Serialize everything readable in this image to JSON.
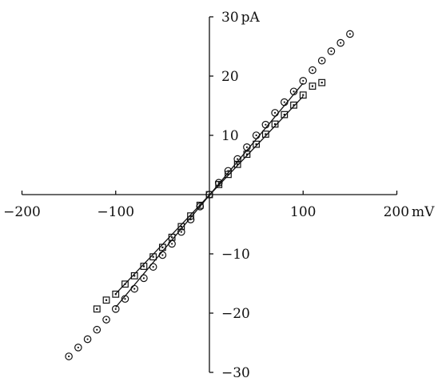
{
  "chart_data": {
    "type": "scatter",
    "title": "",
    "xlabel": "",
    "ylabel": "",
    "xlim": [
      -200,
      200
    ],
    "ylim": [
      -30,
      30
    ],
    "x_unit": "mV",
    "y_unit": "pA",
    "x_ticks": [
      {
        "value": -200,
        "label": "−200"
      },
      {
        "value": -100,
        "label": "−100"
      },
      {
        "value": 100,
        "label": "100"
      },
      {
        "value": 200,
        "label": "200"
      }
    ],
    "y_ticks": [
      {
        "value": -30,
        "label": "−30"
      },
      {
        "value": -20,
        "label": "−20"
      },
      {
        "value": -10,
        "label": "−10"
      },
      {
        "value": 10,
        "label": "10"
      },
      {
        "value": 20,
        "label": "20"
      },
      {
        "value": 30,
        "label": "30"
      }
    ],
    "grid": false,
    "series": [
      {
        "marker": "circle-dot",
        "fit_line_x": [
          -100,
          100
        ],
        "x": [
          -150,
          -140,
          -130,
          -120,
          -110,
          -100,
          -90,
          -80,
          -70,
          -60,
          -50,
          -40,
          -30,
          -20,
          -10,
          0,
          10,
          20,
          30,
          40,
          50,
          60,
          70,
          80,
          90,
          100,
          110,
          120,
          130,
          140,
          150
        ],
        "y": [
          -27.3,
          -25.8,
          -24.4,
          -22.8,
          -21.1,
          -19.3,
          -17.6,
          -15.9,
          -14.1,
          -12.2,
          -10.2,
          -8.3,
          -6.3,
          -4.2,
          -2.0,
          0.0,
          2.0,
          4.0,
          6.0,
          8.0,
          10.0,
          11.8,
          13.8,
          15.6,
          17.4,
          19.2,
          21.0,
          22.6,
          24.2,
          25.6,
          27.1
        ]
      },
      {
        "marker": "square-dot",
        "fit_line_x": [
          -100,
          100
        ],
        "x": [
          -120,
          -110,
          -100,
          -90,
          -80,
          -70,
          -60,
          -50,
          -40,
          -30,
          -20,
          -10,
          0,
          10,
          20,
          30,
          40,
          50,
          60,
          70,
          80,
          90,
          100,
          110,
          120
        ],
        "y": [
          -19.3,
          -17.8,
          -16.8,
          -15.1,
          -13.7,
          -12.1,
          -10.5,
          -8.9,
          -7.2,
          -5.4,
          -3.6,
          -1.8,
          0.0,
          1.7,
          3.4,
          5.1,
          6.8,
          8.5,
          10.2,
          11.9,
          13.5,
          15.1,
          16.8,
          18.3,
          18.9
        ]
      }
    ]
  }
}
